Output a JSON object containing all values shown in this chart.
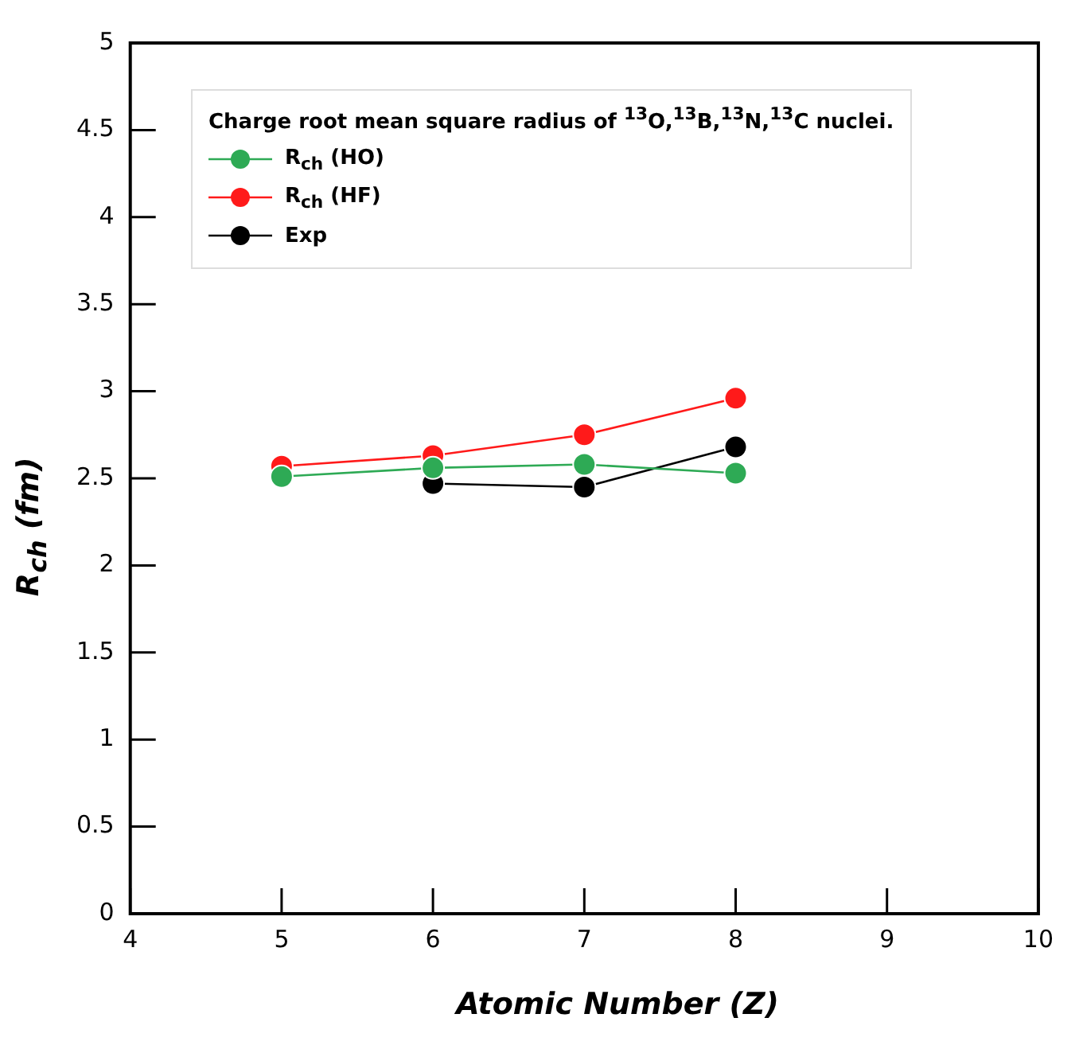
{
  "chart_data": {
    "type": "line",
    "xlabel": "Atomic Number (Z)",
    "ylabel": "R$_{ch}$ (fm)",
    "legend_title": "Charge root mean square radius of $^{13}$O,$^{13}$B,$^{13}$N,$^{13}$C nuclei.",
    "x": [
      5,
      6,
      7,
      8
    ],
    "series": [
      {
        "name": "R$_{ch}$ (HO)",
        "color": "#2eaa55",
        "values": [
          2.51,
          2.56,
          2.58,
          2.53
        ]
      },
      {
        "name": "R$_{ch}$ (HF)",
        "color": "#ff1a1a",
        "values": [
          2.57,
          2.63,
          2.75,
          2.96
        ]
      },
      {
        "name": "Exp",
        "color": "#000000",
        "values": [
          null,
          2.47,
          2.45,
          2.68
        ]
      }
    ],
    "xlim": [
      4,
      10
    ],
    "xticks": [
      4,
      5,
      6,
      7,
      8,
      9,
      10
    ],
    "ylim": [
      0,
      5
    ],
    "yticks": [
      0,
      0.5,
      1,
      1.5,
      2,
      2.5,
      3,
      3.5,
      4,
      4.5,
      5
    ],
    "grid": false,
    "legend": "top left",
    "marker": "circle",
    "line_style": "solid"
  }
}
